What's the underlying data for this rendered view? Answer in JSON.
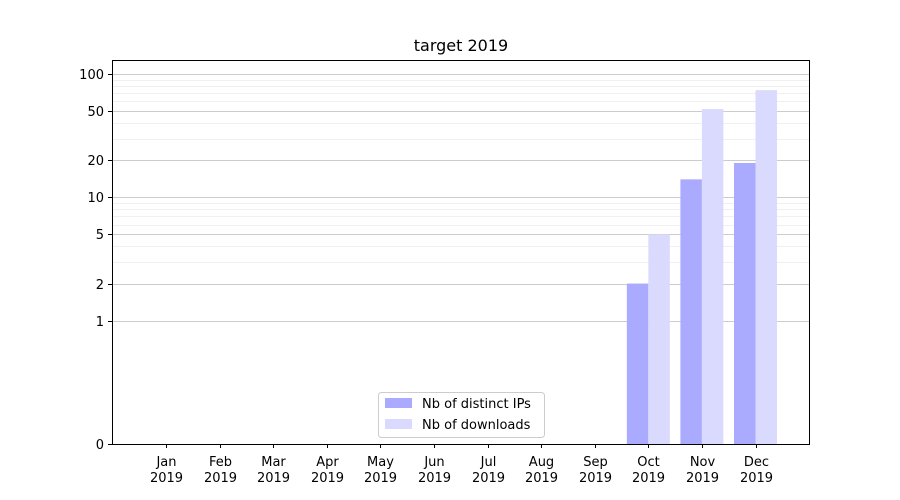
{
  "chart_data": {
    "type": "bar",
    "title": "target 2019",
    "xlabel": "",
    "ylabel": "",
    "y_scale": "symlog",
    "y_ticks": [
      0,
      1,
      2,
      5,
      10,
      20,
      50,
      100
    ],
    "ylim": [
      0,
      130
    ],
    "grid": true,
    "legend_position": "lower center",
    "categories": [
      [
        "Jan",
        "2019"
      ],
      [
        "Feb",
        "2019"
      ],
      [
        "Mar",
        "2019"
      ],
      [
        "Apr",
        "2019"
      ],
      [
        "May",
        "2019"
      ],
      [
        "Jun",
        "2019"
      ],
      [
        "Jul",
        "2019"
      ],
      [
        "Aug",
        "2019"
      ],
      [
        "Sep",
        "2019"
      ],
      [
        "Oct",
        "2019"
      ],
      [
        "Nov",
        "2019"
      ],
      [
        "Dec",
        "2019"
      ]
    ],
    "series": [
      {
        "name": "Nb of distinct IPs",
        "color": "#aaaaff",
        "values": [
          0,
          0,
          0,
          0,
          0,
          0,
          0,
          0,
          0,
          2,
          14,
          19
        ]
      },
      {
        "name": "Nb of downloads",
        "color": "#dadafe",
        "values": [
          0,
          0,
          0,
          0,
          0,
          0,
          0,
          0,
          0,
          5,
          52,
          74
        ]
      }
    ]
  }
}
